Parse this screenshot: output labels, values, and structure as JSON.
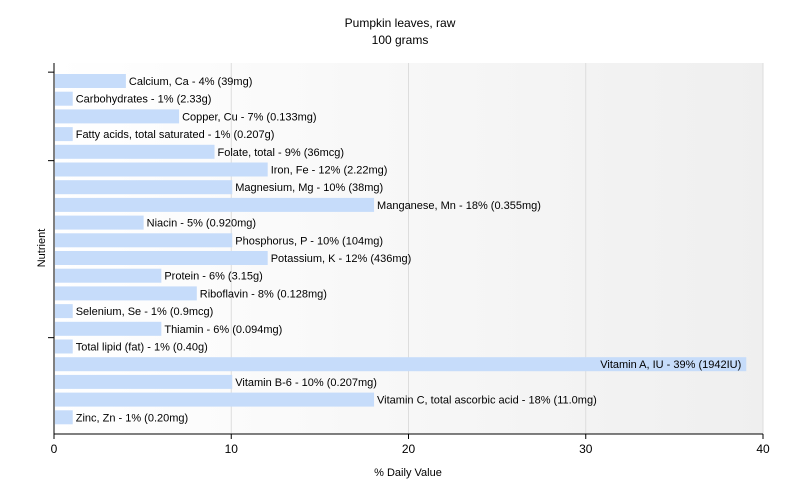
{
  "chart_data": {
    "type": "bar",
    "orientation": "horizontal",
    "title": "Pumpkin leaves, raw",
    "subtitle": "100 grams",
    "xlabel": "% Daily Value",
    "ylabel": "Nutrient",
    "xlim": [
      0,
      40
    ],
    "xticks": [
      0,
      10,
      20,
      30,
      40
    ],
    "grid": true,
    "bar_color": "#c6dcfa",
    "categories": [
      "Calcium, Ca",
      "Carbohydrates",
      "Copper, Cu",
      "Fatty acids, total saturated",
      "Folate, total",
      "Iron, Fe",
      "Magnesium, Mg",
      "Manganese, Mn",
      "Niacin",
      "Phosphorus, P",
      "Potassium, K",
      "Protein",
      "Riboflavin",
      "Selenium, Se",
      "Thiamin",
      "Total lipid (fat)",
      "Vitamin A, IU",
      "Vitamin B-6",
      "Vitamin C, total ascorbic acid",
      "Zinc, Zn"
    ],
    "values": [
      4,
      1,
      7,
      1,
      9,
      12,
      10,
      18,
      5,
      10,
      12,
      6,
      8,
      1,
      6,
      1,
      39,
      10,
      18,
      1
    ],
    "labels": [
      "Calcium, Ca - 4% (39mg)",
      "Carbohydrates - 1% (2.33g)",
      "Copper, Cu - 7% (0.133mg)",
      "Fatty acids, total saturated - 1% (0.207g)",
      "Folate, total - 9% (36mcg)",
      "Iron, Fe - 12% (2.22mg)",
      "Magnesium, Mg - 10% (38mg)",
      "Manganese, Mn - 18% (0.355mg)",
      "Niacin - 5% (0.920mg)",
      "Phosphorus, P - 10% (104mg)",
      "Potassium, K - 12% (436mg)",
      "Protein - 6% (3.15g)",
      "Riboflavin - 8% (0.128mg)",
      "Selenium, Se - 1% (0.9mcg)",
      "Thiamin - 6% (0.094mg)",
      "Total lipid (fat) - 1% (0.40g)",
      "Vitamin A, IU - 39% (1942IU)",
      "Vitamin B-6 - 10% (0.207mg)",
      "Vitamin C, total ascorbic acid - 18% (11.0mg)",
      "Zinc, Zn - 1% (0.20mg)"
    ]
  }
}
